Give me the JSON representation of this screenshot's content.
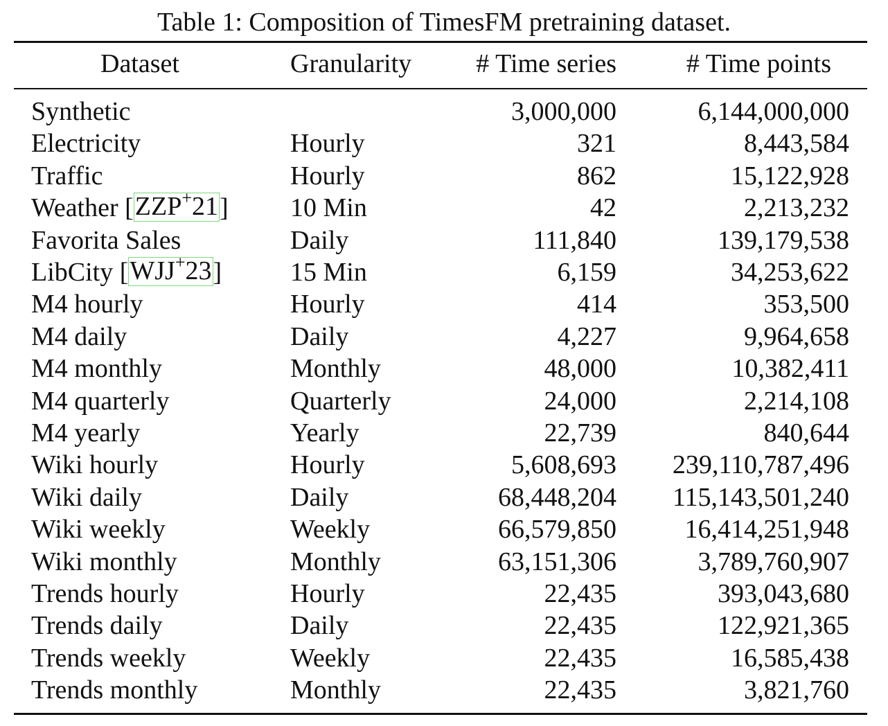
{
  "caption": "Table 1: Composition of TimesFM pretraining dataset.",
  "headers": {
    "dataset": "Dataset",
    "granularity": "Granularity",
    "time_series": "# Time series",
    "time_points": "# Time points"
  },
  "citations": {
    "weather": {
      "prefix": "Weather ",
      "key": "ZZP",
      "sup": "+",
      "year": "21"
    },
    "libcity": {
      "prefix": "LibCity ",
      "key": "WJJ",
      "sup": "+",
      "year": "23"
    }
  },
  "rows": [
    {
      "dataset": "Synthetic",
      "granularity": "",
      "series": "3,000,000",
      "points": "6,144,000,000"
    },
    {
      "dataset": "Electricity",
      "granularity": "Hourly",
      "series": "321",
      "points": "8,443,584"
    },
    {
      "dataset": "Traffic",
      "granularity": "Hourly",
      "series": "862",
      "points": "15,122,928"
    },
    {
      "dataset": "Weather [ZZP+21]",
      "granularity": "10 Min",
      "series": "42",
      "points": "2,213,232"
    },
    {
      "dataset": "Favorita Sales",
      "granularity": "Daily",
      "series": "111,840",
      "points": "139,179,538"
    },
    {
      "dataset": "LibCity [WJJ+23]",
      "granularity": "15 Min",
      "series": "6,159",
      "points": "34,253,622"
    },
    {
      "dataset": "M4 hourly",
      "granularity": "Hourly",
      "series": "414",
      "points": "353,500"
    },
    {
      "dataset": "M4 daily",
      "granularity": "Daily",
      "series": "4,227",
      "points": "9,964,658"
    },
    {
      "dataset": "M4 monthly",
      "granularity": "Monthly",
      "series": "48,000",
      "points": "10,382,411"
    },
    {
      "dataset": "M4 quarterly",
      "granularity": "Quarterly",
      "series": "24,000",
      "points": "2,214,108"
    },
    {
      "dataset": "M4 yearly",
      "granularity": "Yearly",
      "series": "22,739",
      "points": "840,644"
    },
    {
      "dataset": "Wiki hourly",
      "granularity": "Hourly",
      "series": "5,608,693",
      "points": "239,110,787,496"
    },
    {
      "dataset": "Wiki daily",
      "granularity": "Daily",
      "series": "68,448,204",
      "points": "115,143,501,240"
    },
    {
      "dataset": "Wiki weekly",
      "granularity": "Weekly",
      "series": "66,579,850",
      "points": "16,414,251,948"
    },
    {
      "dataset": "Wiki monthly",
      "granularity": "Monthly",
      "series": "63,151,306",
      "points": "3,789,760,907"
    },
    {
      "dataset": "Trends hourly",
      "granularity": "Hourly",
      "series": "22,435",
      "points": "393,043,680"
    },
    {
      "dataset": "Trends daily",
      "granularity": "Daily",
      "series": "22,435",
      "points": "122,921,365"
    },
    {
      "dataset": "Trends weekly",
      "granularity": "Weekly",
      "series": "22,435",
      "points": "16,585,438"
    },
    {
      "dataset": "Trends monthly",
      "granularity": "Monthly",
      "series": "22,435",
      "points": "3,821,760"
    }
  ]
}
